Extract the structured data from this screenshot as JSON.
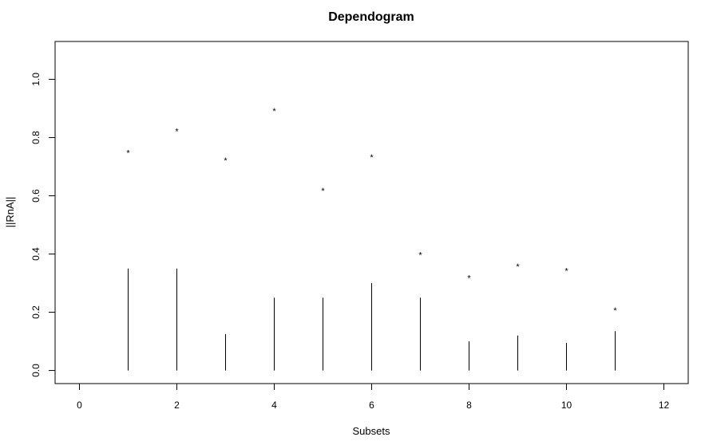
{
  "chart_data": {
    "type": "scatter",
    "title": "Dependogram",
    "xlabel": "Subsets",
    "ylabel": "||RnA||",
    "xlim": [
      -0.5,
      12.5
    ],
    "ylim": [
      -0.045,
      1.13
    ],
    "xticks": [
      0,
      2,
      4,
      6,
      8,
      10,
      12
    ],
    "xtick_labels": [
      "0",
      "2",
      "4",
      "6",
      "8",
      "10",
      "12"
    ],
    "yticks": [
      0.0,
      0.2,
      0.4,
      0.6,
      0.8,
      1.0
    ],
    "ytick_labels": [
      "0.0",
      "0.2",
      "0.4",
      "0.6",
      "0.8",
      "1.0"
    ],
    "grid": false,
    "x": [
      1,
      2,
      3,
      4,
      5,
      6,
      7,
      8,
      9,
      10,
      11
    ],
    "series": [
      {
        "kind": "vertical-lines",
        "values": [
          0.35,
          0.35,
          0.125,
          0.25,
          0.25,
          0.3,
          0.25,
          0.1,
          0.12,
          0.095,
          0.135
        ]
      },
      {
        "kind": "star-points",
        "marker": "*",
        "values": [
          0.75,
          0.825,
          0.725,
          0.895,
          0.62,
          0.735,
          0.4,
          0.32,
          0.36,
          0.345,
          0.21
        ]
      }
    ]
  }
}
